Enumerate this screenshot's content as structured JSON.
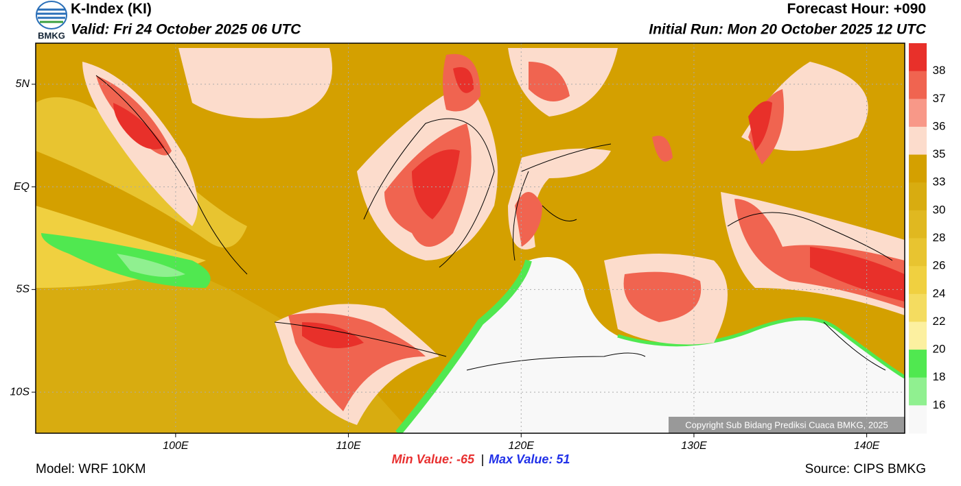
{
  "header": {
    "title": "K-Index (KI)",
    "valid": "Valid: Fri 24 October 2025 06 UTC",
    "forecast_hour": "Forecast Hour: +090",
    "initial_run": "Initial Run: Mon 20 October 2025 12 UTC",
    "logo": "BMKG"
  },
  "map": {
    "xlim": [
      91.9,
      142.2
    ],
    "ylim": [
      -12,
      7
    ],
    "xticks": [
      {
        "value": 100,
        "label": "100E"
      },
      {
        "value": 110,
        "label": "110E"
      },
      {
        "value": 120,
        "label": "120E"
      },
      {
        "value": 130,
        "label": "130E"
      },
      {
        "value": 140,
        "label": "140E"
      }
    ],
    "yticks": [
      {
        "value": 5,
        "label": "5N"
      },
      {
        "value": 0,
        "label": "EQ"
      },
      {
        "value": -5,
        "label": "5S"
      },
      {
        "value": -10,
        "label": "10S"
      }
    ],
    "colorbar": {
      "levels": [
        38,
        37,
        36,
        35,
        33,
        30,
        28,
        26,
        24,
        22,
        20,
        18,
        16
      ],
      "colors": [
        "#e8302a",
        "#f06450",
        "#f89888",
        "#fcdccc",
        "#d4a000",
        "#d8ac10",
        "#e0b820",
        "#e8c430",
        "#f0d040",
        "#f4dc60",
        "#fcf0a0",
        "#50e850",
        "#90f090",
        "#f8f8f8"
      ]
    },
    "copyright": "Copyright Sub Bidang Prediksi Cuaca BMKG, 2025"
  },
  "footer": {
    "min_label": "Min Value:",
    "min_value": -65,
    "max_label": "Max Value:",
    "max_value": 51,
    "model": "Model: WRF 10KM",
    "source": "Source: CIPS BMKG"
  }
}
